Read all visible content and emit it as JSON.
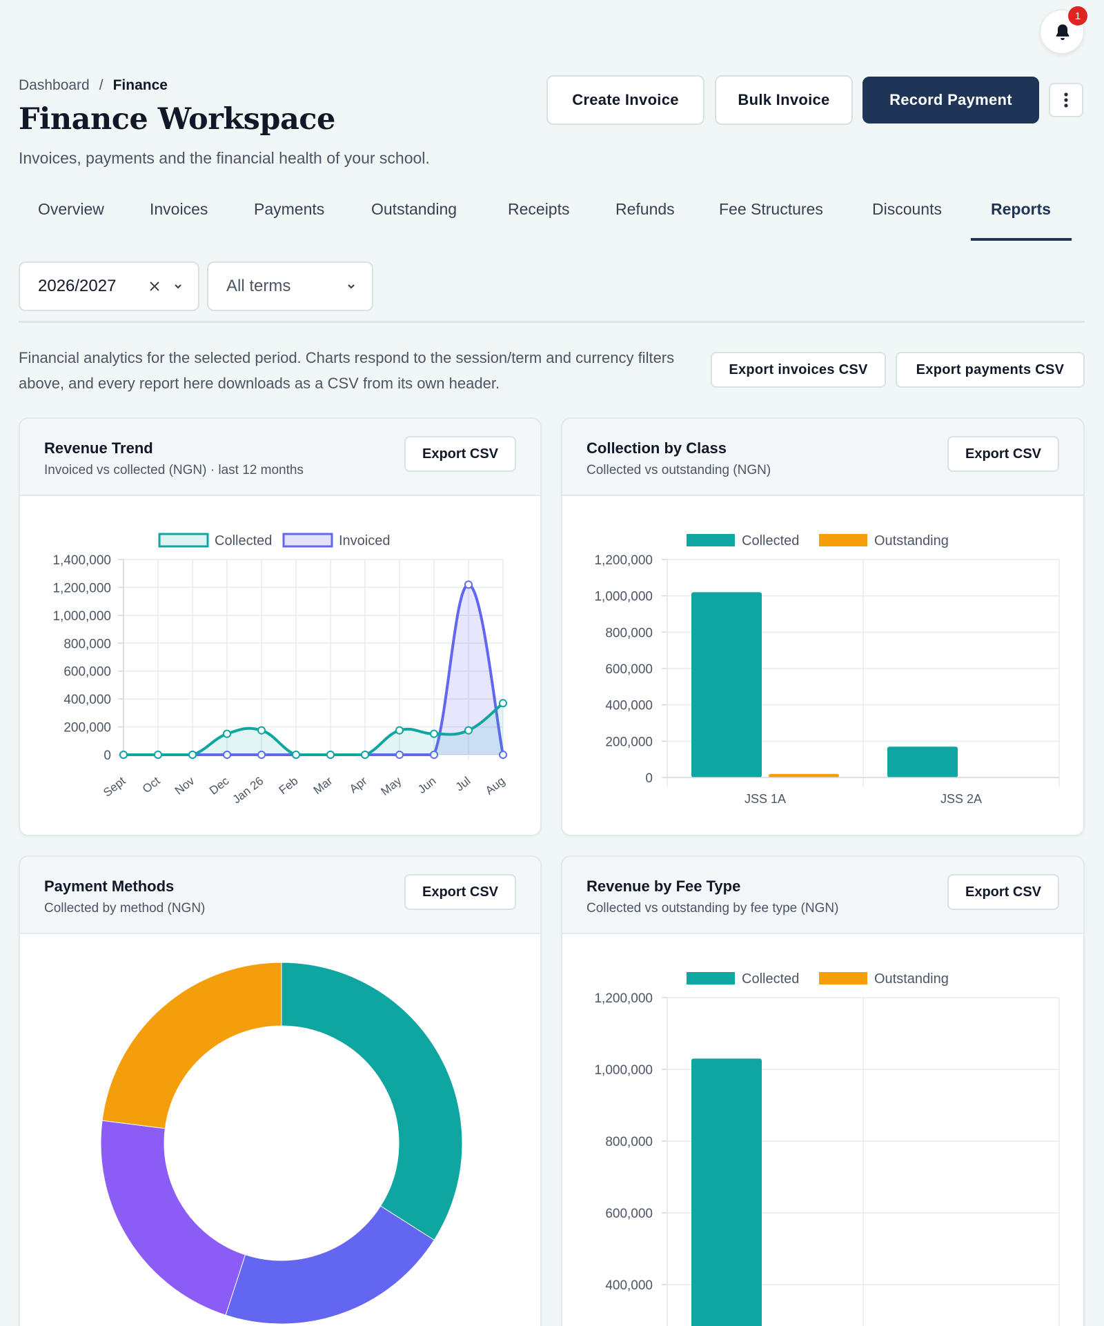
{
  "header": {
    "notifications_count": "1",
    "breadcrumb": [
      "Dashboard",
      "/",
      "Finance"
    ],
    "title": "Finance Workspace",
    "subtitle": "Invoices, payments and the financial health of your school.",
    "actions": {
      "create": "Create Invoice",
      "bulk": "Bulk Invoice",
      "record": "Record Payment"
    }
  },
  "tabs": [
    "Overview",
    "Invoices",
    "Payments",
    "Outstanding",
    "Receipts",
    "Refunds",
    "Fee Structures",
    "Discounts",
    "Reports"
  ],
  "active_tab": "Reports",
  "filters": {
    "session": "2026/2027",
    "term": "All terms"
  },
  "reports": {
    "intro": "Financial analytics for the selected period. Charts respond to the session/term and currency filters above, and every report here downloads as a CSV from its own header.",
    "export_invoices": "Export invoices CSV",
    "export_payments": "Export payments CSV",
    "export_label": "Export CSV"
  },
  "colors": {
    "teal": "#0fa6a1",
    "purple": "#6366f1",
    "violet": "#8b5cf6",
    "orange": "#f59e0b",
    "primary": "#1e3557"
  },
  "cards": {
    "revenue": {
      "title": "Revenue Trend",
      "subtitle": "Invoiced vs collected (NGN) · last 12 months"
    },
    "by_class": {
      "title": "Collection by Class",
      "subtitle": "Collected vs outstanding (NGN)"
    },
    "methods": {
      "title": "Payment Methods",
      "subtitle": "Collected by method (NGN)"
    },
    "fee_type": {
      "title": "Revenue by Fee Type",
      "subtitle": "Collected vs outstanding by fee type (NGN)"
    }
  },
  "chart_data": [
    {
      "type": "line",
      "categories": [
        "Sept",
        "Oct",
        "Nov",
        "Dec",
        "Jan 26",
        "Feb",
        "Mar",
        "Apr",
        "May",
        "Jun",
        "Jul",
        "Aug"
      ],
      "series": [
        {
          "name": "Collected",
          "values": [
            0,
            0,
            0,
            150000,
            175000,
            0,
            0,
            0,
            175000,
            150000,
            175000,
            370000
          ]
        },
        {
          "name": "Invoiced",
          "values": [
            0,
            0,
            0,
            0,
            0,
            0,
            0,
            0,
            0,
            0,
            1220000,
            0
          ]
        }
      ],
      "ylim": [
        0,
        1400000
      ],
      "yticks": [
        "1,400,000",
        "1,200,000",
        "1,000,000",
        "800,000",
        "600,000",
        "400,000",
        "200,000",
        "0"
      ],
      "grid": true,
      "legend": "top"
    },
    {
      "type": "bar",
      "categories": [
        "JSS 1A",
        "JSS 2A"
      ],
      "series": [
        {
          "name": "Collected",
          "values": [
            1020000,
            170000
          ]
        },
        {
          "name": "Outstanding",
          "values": [
            20000,
            0
          ]
        }
      ],
      "ylim": [
        0,
        1200000
      ],
      "yticks": [
        "1,200,000",
        "1,000,000",
        "800,000",
        "600,000",
        "400,000",
        "200,000",
        "0"
      ],
      "grid": true,
      "legend": "top"
    },
    {
      "type": "pie",
      "values": [
        34,
        21,
        22,
        23
      ],
      "colors": [
        "#0fa6a1",
        "#6366f1",
        "#8b5cf6",
        "#f59e0b"
      ]
    },
    {
      "type": "bar",
      "series": [
        {
          "name": "Collected",
          "values": [
            1030000
          ]
        },
        {
          "name": "Outstanding",
          "values": [
            0
          ]
        }
      ],
      "ylim": [
        0,
        1200000
      ],
      "yticks": [
        "1,200,000",
        "1,000,000",
        "800,000",
        "600,000",
        "400,000"
      ],
      "grid": true,
      "legend": "top"
    }
  ]
}
